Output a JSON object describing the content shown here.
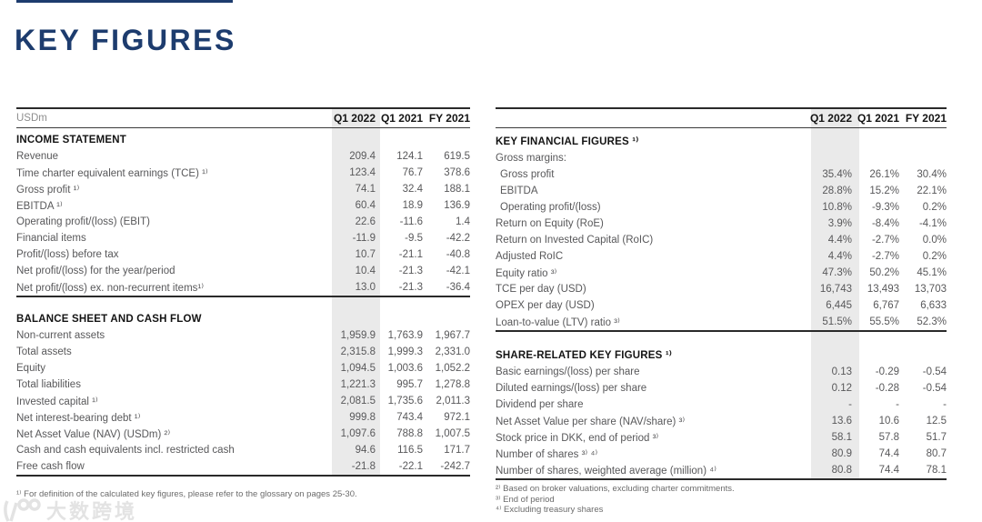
{
  "page": {
    "title": "KEY FIGURES",
    "accent_color": "#1d3c6e",
    "highlight_color": "#eaeaea"
  },
  "tables": [
    {
      "name": "left-financial-table",
      "unit_label": "USDm",
      "col_headers": [
        "Q1 2022",
        "Q1 2021",
        "FY 2021"
      ],
      "highlighted_column": "Q1 2022",
      "sections": [
        {
          "title": "INCOME STATEMENT",
          "rows": [
            {
              "label": "Revenue",
              "values": [
                "209.4",
                "124.1",
                "619.5"
              ]
            },
            {
              "label": "Time charter equivalent earnings (TCE) ¹⁾",
              "values": [
                "123.4",
                "76.7",
                "378.6"
              ]
            },
            {
              "label": "Gross profit ¹⁾",
              "values": [
                "74.1",
                "32.4",
                "188.1"
              ]
            },
            {
              "label": "EBITDA ¹⁾",
              "values": [
                "60.4",
                "18.9",
                "136.9"
              ]
            },
            {
              "label": "Operating profit/(loss) (EBIT)",
              "values": [
                "22.6",
                "-11.6",
                "1.4"
              ]
            },
            {
              "label": "Financial items",
              "values": [
                "-11.9",
                "-9.5",
                "-42.2"
              ]
            },
            {
              "label": "Profit/(loss) before tax",
              "values": [
                "10.7",
                "-21.1",
                "-40.8"
              ]
            },
            {
              "label": "Net profit/(loss) for the year/period",
              "values": [
                "10.4",
                "-21.3",
                "-42.1"
              ]
            },
            {
              "label": "Net profit/(loss) ex. non-recurrent items¹⁾",
              "values": [
                "13.0",
                "-21.3",
                "-36.4"
              ]
            }
          ]
        },
        {
          "title": "BALANCE SHEET AND CASH FLOW",
          "rows": [
            {
              "label": "Non-current assets",
              "values": [
                "1,959.9",
                "1,763.9",
                "1,967.7"
              ]
            },
            {
              "label": "Total assets",
              "values": [
                "2,315.8",
                "1,999.3",
                "2,331.0"
              ]
            },
            {
              "label": "Equity",
              "values": [
                "1,094.5",
                "1,003.6",
                "1,052.2"
              ]
            },
            {
              "label": "Total liabilities",
              "values": [
                "1,221.3",
                "995.7",
                "1,278.8"
              ]
            },
            {
              "label": "Invested capital ¹⁾",
              "values": [
                "2,081.5",
                "1,735.6",
                "2,011.3"
              ]
            },
            {
              "label": "Net interest-bearing debt ¹⁾",
              "values": [
                "999.8",
                "743.4",
                "972.1"
              ]
            },
            {
              "label": "Net Asset Value (NAV) (USDm) ²⁾",
              "values": [
                "1,097.6",
                "788.8",
                "1,007.5"
              ]
            },
            {
              "label": "Cash and cash equivalents incl. restricted cash",
              "values": [
                "94.6",
                "116.5",
                "171.7"
              ]
            },
            {
              "label": "Free cash flow",
              "values": [
                "-21.8",
                "-22.1",
                "-242.7"
              ]
            }
          ]
        }
      ]
    },
    {
      "name": "right-financial-table",
      "unit_label": "",
      "col_headers": [
        "Q1 2022",
        "Q1 2021",
        "FY 2021"
      ],
      "highlighted_column": "Q1 2022",
      "sections": [
        {
          "title": "KEY FINANCIAL FIGURES ¹⁾",
          "rows": [
            {
              "label": "Gross margins:",
              "values": [
                "",
                "",
                ""
              ]
            },
            {
              "label": "Gross profit",
              "indent": true,
              "values": [
                "35.4%",
                "26.1%",
                "30.4%"
              ]
            },
            {
              "label": "EBITDA",
              "indent": true,
              "values": [
                "28.8%",
                "15.2%",
                "22.1%"
              ]
            },
            {
              "label": "Operating profit/(loss)",
              "indent": true,
              "values": [
                "10.8%",
                "-9.3%",
                "0.2%"
              ]
            },
            {
              "label": "Return on Equity (RoE)",
              "values": [
                "3.9%",
                "-8.4%",
                "-4.1%"
              ]
            },
            {
              "label": "Return on Invested Capital (RoIC)",
              "values": [
                "4.4%",
                "-2.7%",
                "0.0%"
              ]
            },
            {
              "label": "Adjusted RoIC",
              "values": [
                "4.4%",
                "-2.7%",
                "0.2%"
              ]
            },
            {
              "label": "Equity ratio ³⁾",
              "values": [
                "47.3%",
                "50.2%",
                "45.1%"
              ]
            },
            {
              "label": "TCE per day (USD)",
              "values": [
                "16,743",
                "13,493",
                "13,703"
              ]
            },
            {
              "label": "OPEX per day (USD)",
              "values": [
                "6,445",
                "6,767",
                "6,633"
              ]
            },
            {
              "label": "Loan-to-value (LTV) ratio ³⁾",
              "values": [
                "51.5%",
                "55.5%",
                "52.3%"
              ]
            }
          ]
        },
        {
          "title": "SHARE-RELATED KEY FIGURES ¹⁾",
          "rows": [
            {
              "label": "Basic earnings/(loss) per share",
              "values": [
                "0.13",
                "-0.29",
                "-0.54"
              ]
            },
            {
              "label": "Diluted earnings/(loss) per share",
              "values": [
                "0.12",
                "-0.28",
                "-0.54"
              ]
            },
            {
              "label": "Dividend per share",
              "values": [
                "-",
                "-",
                "-"
              ]
            },
            {
              "label": "Net Asset Value per share (NAV/share) ³⁾",
              "values": [
                "13.6",
                "10.6",
                "12.5"
              ]
            },
            {
              "label": "Stock price in DKK, end of period ³⁾",
              "values": [
                "58.1",
                "57.8",
                "51.7"
              ]
            },
            {
              "label": "Number of shares ³⁾ ⁴⁾",
              "values": [
                "80.9",
                "74.4",
                "80.7"
              ]
            },
            {
              "label": "Number of shares, weighted average (million) ⁴⁾",
              "values": [
                "80.8",
                "74.4",
                "78.1"
              ]
            }
          ]
        }
      ]
    }
  ],
  "footnote_groups": [
    {
      "position": "left",
      "lines": [
        "¹⁾ For definition of the calculated key figures, please refer to the glossary on pages 25-30."
      ]
    },
    {
      "position": "right",
      "lines": [
        "²⁾ Based on broker valuations, excluding charter commitments.",
        "³⁾ End of period",
        "⁴⁾ Excluding treasury shares"
      ]
    }
  ],
  "watermark": {
    "text": "大数跨境"
  }
}
